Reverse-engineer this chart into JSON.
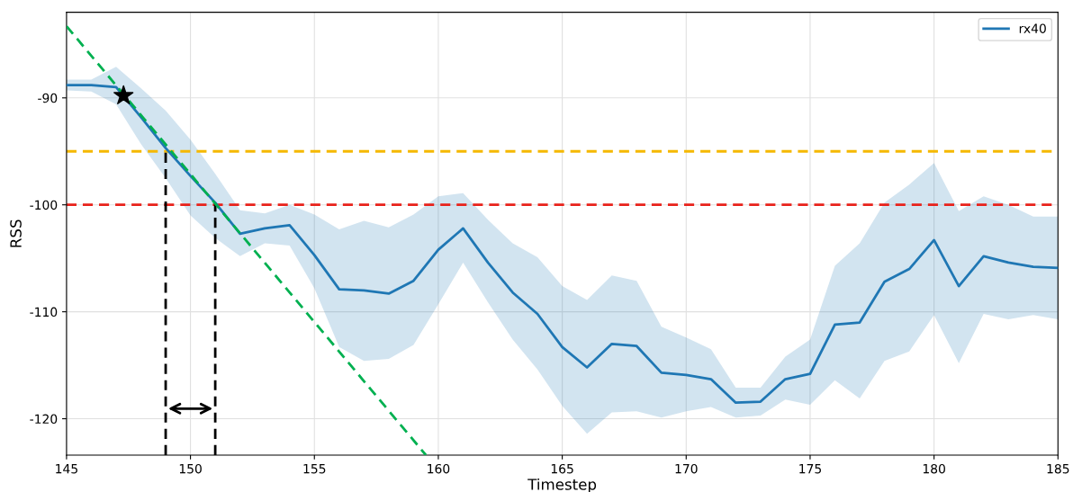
{
  "chart_data": {
    "type": "line",
    "xlabel": "Timestep",
    "ylabel": "RSS",
    "xlim": [
      145,
      185
    ],
    "ylim": [
      -123.4,
      -82
    ],
    "xticks": [
      145,
      150,
      155,
      160,
      165,
      170,
      175,
      180,
      185
    ],
    "yticks": [
      -90,
      -100,
      -110,
      -120
    ],
    "grid": true,
    "legend": "top right",
    "series": [
      {
        "name": "rx40",
        "color": "#1f77b4",
        "x": [
          145,
          146,
          147,
          148,
          149,
          150,
          151,
          152,
          153,
          154,
          155,
          156,
          157,
          158,
          159,
          160,
          161,
          162,
          163,
          164,
          165,
          166,
          167,
          168,
          169,
          170,
          171,
          172,
          173,
          174,
          175,
          176,
          177,
          178,
          179,
          180,
          181,
          182,
          183,
          184,
          185
        ],
        "values": [
          -88.8,
          -88.8,
          -89.0,
          -91.8,
          -94.7,
          -97.3,
          -99.8,
          -102.7,
          -102.2,
          -101.9,
          -104.7,
          -107.9,
          -108.0,
          -108.3,
          -107.1,
          -104.2,
          -102.2,
          -105.4,
          -108.2,
          -110.2,
          -113.3,
          -115.2,
          -113.0,
          -113.2,
          -115.7,
          -115.9,
          -116.3,
          -118.5,
          -118.4,
          -116.3,
          -115.8,
          -111.2,
          -111.0,
          -107.2,
          -106.0,
          -103.3,
          -107.6,
          -104.8,
          -105.4,
          -105.8,
          -105.9
        ],
        "upper": [
          -88.3,
          -88.3,
          -87.1,
          -89.1,
          -91.2,
          -93.9,
          -97.1,
          -100.5,
          -100.8,
          -100.0,
          -100.9,
          -102.3,
          -101.5,
          -102.1,
          -100.9,
          -99.2,
          -98.9,
          -101.4,
          -103.6,
          -104.9,
          -107.6,
          -108.9,
          -106.6,
          -107.1,
          -111.4,
          -112.4,
          -113.5,
          -117.1,
          -117.1,
          -114.2,
          -112.6,
          -105.7,
          -103.6,
          -99.8,
          -98.1,
          -96.1,
          -100.6,
          -99.2,
          -100.0,
          -101.1,
          -101.1
        ],
        "lower": [
          -89.3,
          -89.4,
          -90.6,
          -94.3,
          -97.5,
          -101.0,
          -103.1,
          -104.8,
          -103.6,
          -103.8,
          -107.8,
          -113.3,
          -114.6,
          -114.4,
          -113.1,
          -109.3,
          -105.4,
          -109.1,
          -112.6,
          -115.4,
          -118.8,
          -121.4,
          -119.4,
          -119.3,
          -119.9,
          -119.3,
          -118.9,
          -119.9,
          -119.7,
          -118.2,
          -118.7,
          -116.4,
          -118.1,
          -114.6,
          -113.7,
          -110.3,
          -114.8,
          -110.2,
          -110.7,
          -110.3,
          -110.7
        ]
      },
      {
        "type": "line",
        "color": "#00b050",
        "line_style": "dashed",
        "x": [
          145,
          159.5
        ],
        "values": [
          -83.3,
          -123.4
        ]
      },
      {
        "type": "scatter",
        "color": "#000000",
        "marker": "star",
        "x": [
          147.3
        ],
        "values": [
          -89.8
        ]
      }
    ],
    "ref_lines": [
      {
        "axis": "y",
        "value": -95,
        "color": "#f5b800",
        "line_style": "dashed"
      },
      {
        "axis": "y",
        "value": -100,
        "color": "#e8221b",
        "line_style": "dashed"
      },
      {
        "axis": "x",
        "value": 149,
        "color": "#000000",
        "line_style": "dashed"
      },
      {
        "axis": "x",
        "value": 151,
        "color": "#000000",
        "line_style": "dashed"
      }
    ]
  }
}
